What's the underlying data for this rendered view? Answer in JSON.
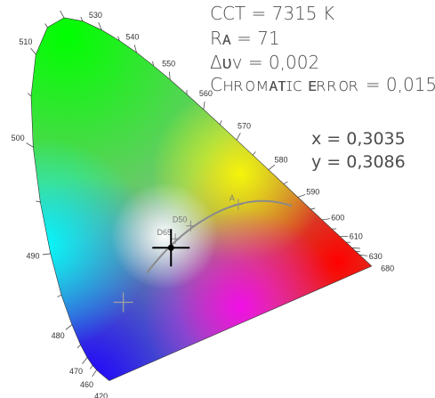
{
  "readouts": {
    "cct": "CCT = 7315 K",
    "ra": "Rᴀ = 71",
    "duv": "Δᴜᴠ = 0,002",
    "chromatic_error": "Cʜʀᴏᴍᴀᴛɪᴄ ᴇʀʀᴏʀ = 0,015",
    "x": "x = 0,3035",
    "y": "y = 0,3086"
  },
  "chart_data": {
    "type": "scatter",
    "title": "",
    "xlabel": "",
    "ylabel": "",
    "xlim": [
      0,
      0.75
    ],
    "ylim": [
      0,
      0.85
    ],
    "spectral_locus_nm": [
      420,
      460,
      470,
      480,
      490,
      500,
      510,
      530,
      540,
      550,
      560,
      570,
      580,
      590,
      600,
      610,
      630,
      680
    ],
    "white_points": [
      {
        "label": "D50",
        "x": 0.3457,
        "y": 0.3585
      },
      {
        "label": "D65",
        "x": 0.3127,
        "y": 0.329
      },
      {
        "label": "A",
        "x": 0.4476,
        "y": 0.4074
      }
    ],
    "measured_point": {
      "x": 0.3035,
      "y": 0.3086
    },
    "reference_marker": {
      "x": 0.2012,
      "y": 0.184
    },
    "colors": {
      "text": "#4d4d4d",
      "planckian": "#8a8a8a",
      "crosshair": "#000000"
    }
  }
}
